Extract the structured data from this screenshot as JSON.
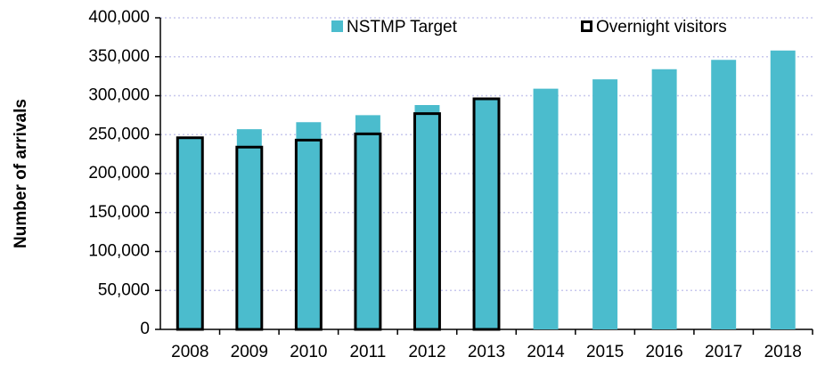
{
  "chart_data": {
    "type": "bar",
    "y_label": "Number of arrivals",
    "categories": [
      "2008",
      "2009",
      "2010",
      "2011",
      "2012",
      "2013",
      "2014",
      "2015",
      "2016",
      "2017",
      "2018"
    ],
    "series": [
      {
        "name": "NSTMP Target",
        "color": "#4bbccd",
        "values": [
          246000,
          257000,
          266000,
          275000,
          288000,
          296000,
          309000,
          321000,
          334000,
          346000,
          358000
        ]
      },
      {
        "name": "Overnight visitors",
        "color": "#000000",
        "values": [
          246000,
          234000,
          243000,
          251000,
          277000,
          296000,
          null,
          null,
          null,
          null,
          null
        ]
      }
    ],
    "ylim": [
      0,
      400000
    ],
    "yticks": [
      0,
      {
        "value": 50000,
        "label": "50,000"
      },
      {
        "value": 100000,
        "label": "100,000"
      },
      {
        "value": 150000,
        "label": "150,000"
      },
      {
        "value": 200000,
        "label": "200,000"
      },
      {
        "value": 250000,
        "label": "250,000"
      },
      {
        "value": 300000,
        "label": "300,000"
      },
      {
        "value": 350000,
        "label": "350,000"
      },
      {
        "value": 400000,
        "label": "400,000"
      }
    ],
    "grid": true,
    "legend": "top"
  }
}
